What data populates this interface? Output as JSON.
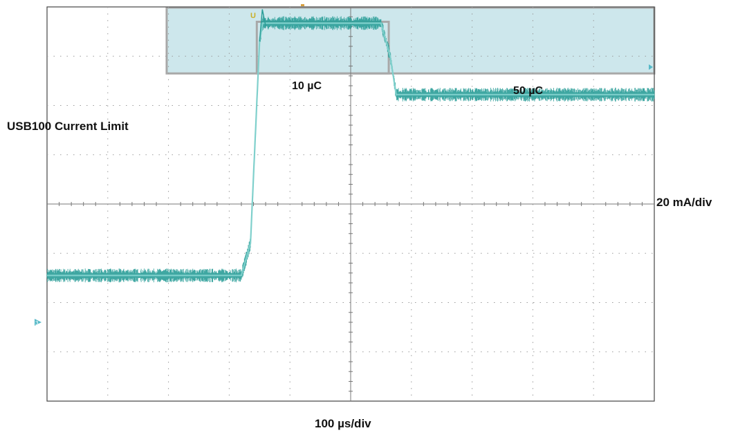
{
  "chart_data": {
    "type": "line",
    "title": "",
    "xlabel": "100 µs/div",
    "ylabel": "20 mA/div",
    "x_divisions": 10,
    "y_divisions": 8,
    "grid": true,
    "series": [
      {
        "color": "#2a9d98",
        "x_div": [
          0.0,
          3.2,
          3.35,
          3.5,
          3.55,
          5.5,
          5.65,
          5.75,
          10.0
        ],
        "y_div": [
          -1.45,
          -1.45,
          -0.8,
          3.3,
          3.67,
          3.67,
          3.0,
          2.22,
          2.22
        ]
      }
    ],
    "annotations": {
      "limit_label": "USB100 Current Limit",
      "charge_small": "10 µC",
      "charge_large": "50 µC",
      "limit_level_div": 2.65
    },
    "markers": {
      "trigger": "U",
      "channel": "3"
    },
    "colors": {
      "trace": "#2a9d98",
      "trace_light": "#7fd0cc",
      "region_fill": "#cde7ec",
      "region_border": "#a8a8a8",
      "grid": "#9a9a9a",
      "marker_yellow": "#c9b027",
      "marker_cyan": "#56b9c7"
    }
  }
}
